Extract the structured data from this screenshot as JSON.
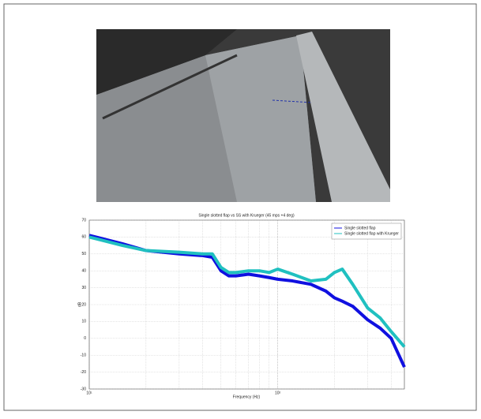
{
  "chart_data": {
    "type": "line",
    "title": "Single slotted flap vs SS with Krueger (45 mps +4 deg)",
    "xlabel": "Frequency (Hz)",
    "ylabel": "dB",
    "xscale": "log",
    "grid": true,
    "legend": "upper right",
    "x": [
      10,
      15,
      20,
      30,
      40,
      45,
      50,
      55,
      60,
      70,
      80,
      90,
      100,
      120,
      150,
      180,
      200,
      220,
      250,
      300,
      350,
      400,
      470
    ],
    "series": [
      {
        "name": "Single slotted flap",
        "color": "#1010e0",
        "values": [
          61,
          56,
          52,
          50,
          49,
          48,
          40,
          37,
          37,
          38,
          37,
          36,
          35,
          34,
          32,
          28,
          24,
          22,
          19,
          11,
          6,
          0,
          -17
        ]
      },
      {
        "name": "Single slotted flap with Krueger",
        "color": "#20c0c0",
        "values": [
          60,
          55,
          52,
          51,
          50,
          50,
          42,
          39,
          39,
          40,
          40,
          39,
          41,
          38,
          34,
          35,
          39,
          41,
          32,
          18,
          12,
          4,
          -5
        ]
      }
    ],
    "xlim": [
      10,
      470
    ],
    "xticks": [
      {
        "value": 10,
        "label": "10¹"
      },
      {
        "value": 100,
        "label": "10²"
      }
    ],
    "ylim": [
      -30,
      70
    ],
    "yticks": [
      -30,
      -20,
      -10,
      0,
      10,
      20,
      30,
      40,
      50,
      60,
      70
    ]
  }
}
